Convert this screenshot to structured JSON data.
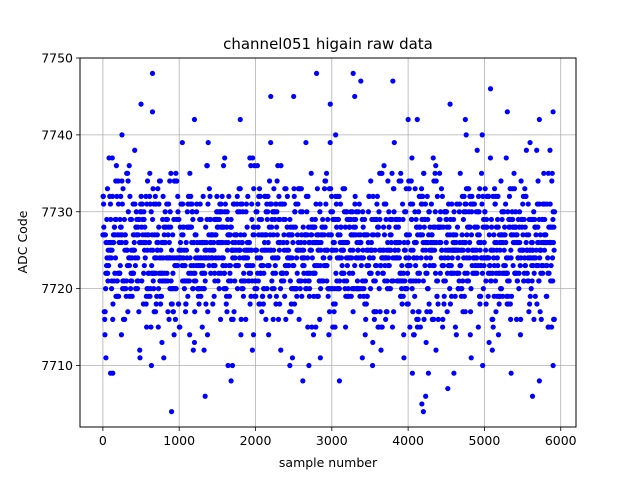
{
  "chart_data": {
    "type": "scatter",
    "title": "channel051 higain raw data",
    "xlabel": "sample number",
    "ylabel": "ADC Code",
    "xlim": [
      -300,
      6200
    ],
    "ylim": [
      7702,
      7750
    ],
    "xticks": [
      0,
      1000,
      2000,
      3000,
      4000,
      5000,
      6000
    ],
    "yticks": [
      7710,
      7720,
      7730,
      7740,
      7750
    ],
    "grid": true,
    "marker_color": "#0000ff",
    "series": [
      {
        "n_samples": 5920,
        "x_range": [
          0,
          5920
        ],
        "typical_range": [
          7713,
          7735
        ],
        "mean": 7725,
        "points": [
          {
            "x": 650,
            "y": 7748
          },
          {
            "x": 2800,
            "y": 7748
          },
          {
            "x": 3280,
            "y": 7748
          },
          {
            "x": 3380,
            "y": 7747
          },
          {
            "x": 3800,
            "y": 7747
          },
          {
            "x": 5080,
            "y": 7746
          },
          {
            "x": 2200,
            "y": 7745
          },
          {
            "x": 2500,
            "y": 7745
          },
          {
            "x": 3300,
            "y": 7745
          },
          {
            "x": 500,
            "y": 7744
          },
          {
            "x": 2980,
            "y": 7744
          },
          {
            "x": 4550,
            "y": 7744
          },
          {
            "x": 650,
            "y": 7743
          },
          {
            "x": 5300,
            "y": 7743
          },
          {
            "x": 5900,
            "y": 7743
          },
          {
            "x": 4000,
            "y": 7742
          },
          {
            "x": 4120,
            "y": 7742
          },
          {
            "x": 1200,
            "y": 7742
          },
          {
            "x": 1800,
            "y": 7742
          },
          {
            "x": 4750,
            "y": 7742
          },
          {
            "x": 5720,
            "y": 7742
          },
          {
            "x": 250,
            "y": 7740
          },
          {
            "x": 3050,
            "y": 7740
          },
          {
            "x": 900,
            "y": 7704
          },
          {
            "x": 4200,
            "y": 7704
          },
          {
            "x": 4180,
            "y": 7705
          },
          {
            "x": 4230,
            "y": 7706
          },
          {
            "x": 1340,
            "y": 7706
          },
          {
            "x": 5630,
            "y": 7706
          },
          {
            "x": 4520,
            "y": 7707
          },
          {
            "x": 1680,
            "y": 7708
          },
          {
            "x": 2620,
            "y": 7708
          },
          {
            "x": 3100,
            "y": 7708
          },
          {
            "x": 5720,
            "y": 7708
          },
          {
            "x": 4600,
            "y": 7709
          },
          {
            "x": 1640,
            "y": 7710
          },
          {
            "x": 2450,
            "y": 7710
          },
          {
            "x": 2700,
            "y": 7710
          },
          {
            "x": 5350,
            "y": 7709
          },
          {
            "x": 5900,
            "y": 7710
          },
          {
            "x": 100,
            "y": 7709
          },
          {
            "x": 130,
            "y": 7709
          },
          {
            "x": 40,
            "y": 7711
          },
          {
            "x": 3400,
            "y": 7711
          },
          {
            "x": 2850,
            "y": 7711
          }
        ]
      }
    ]
  }
}
